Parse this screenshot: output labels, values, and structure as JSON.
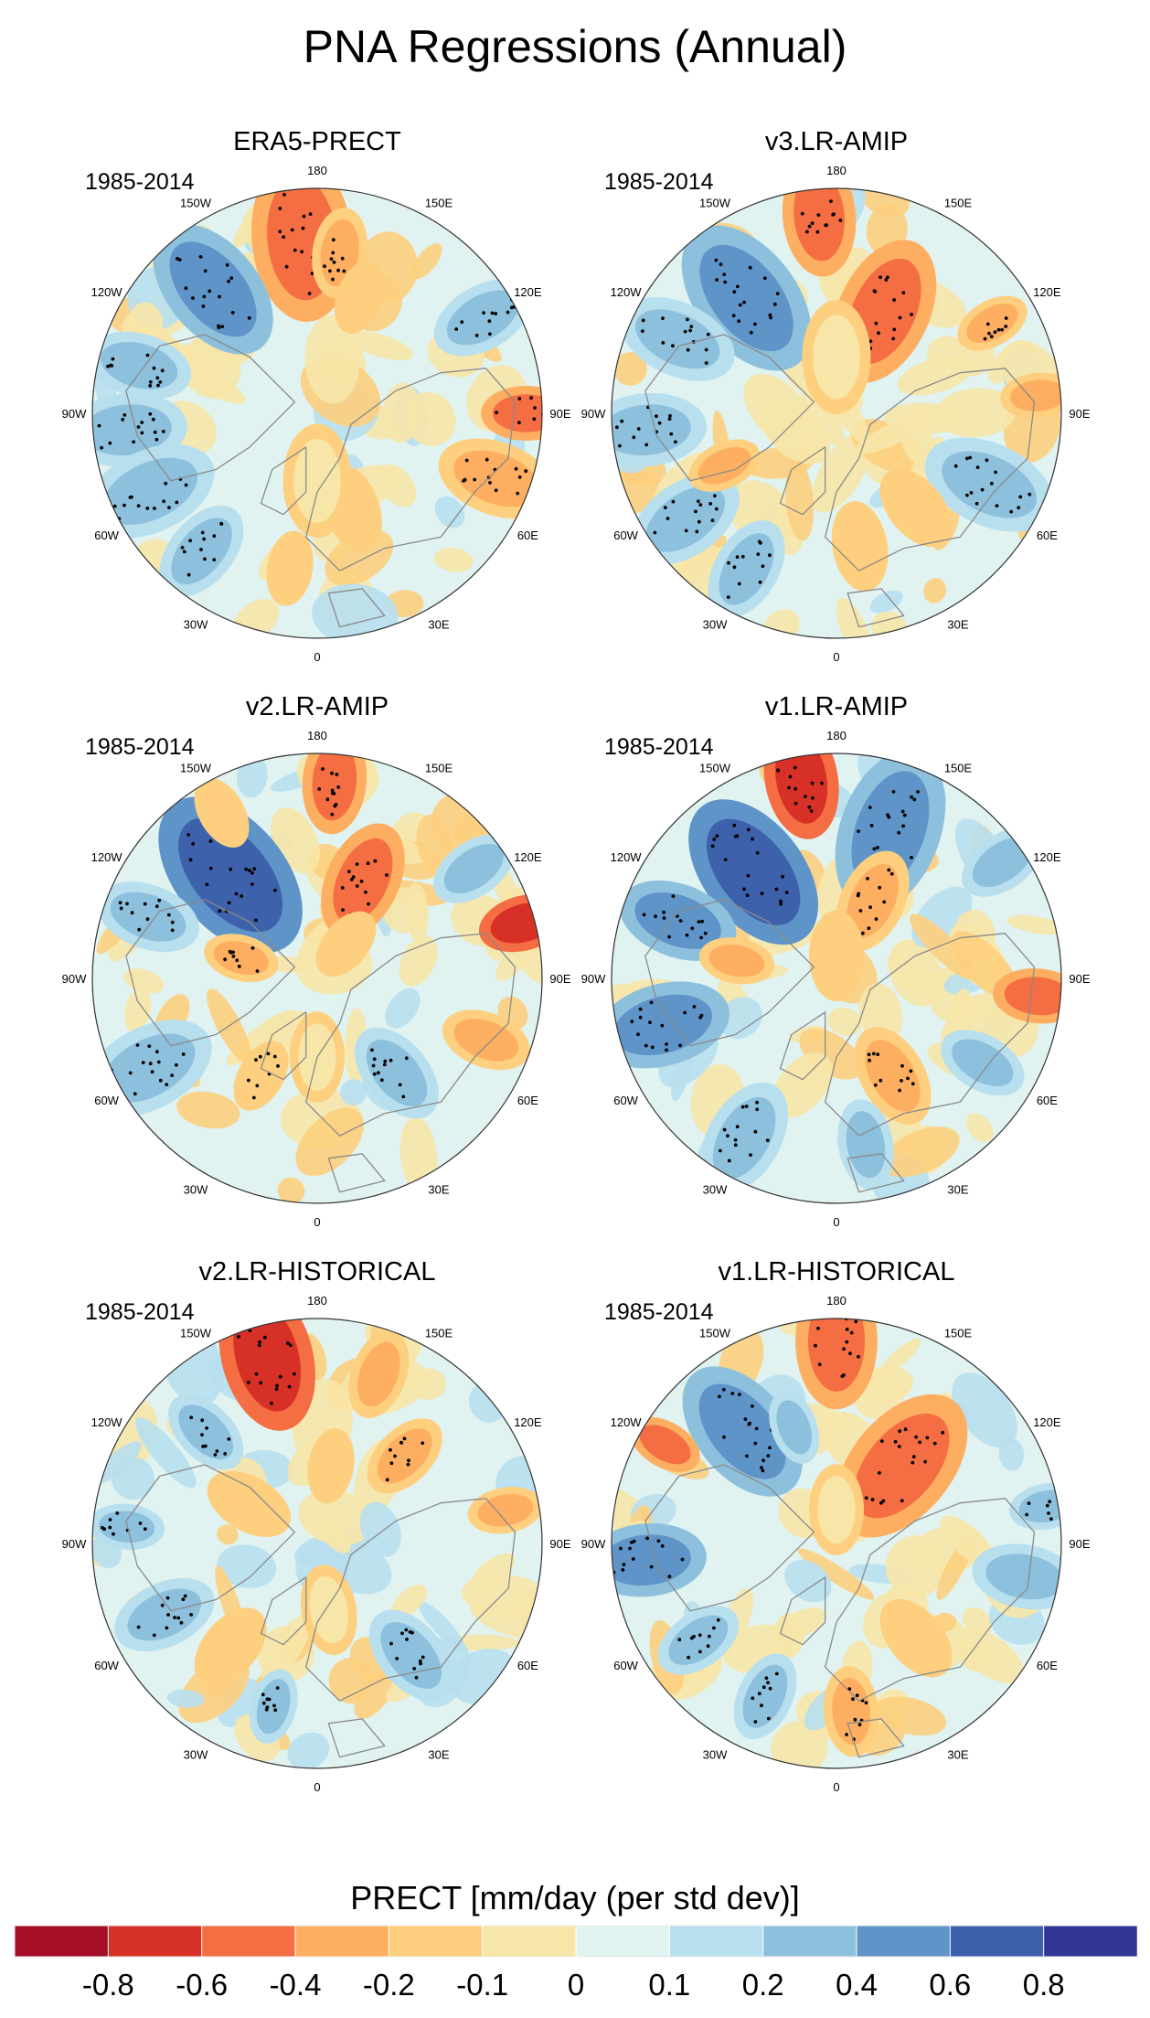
{
  "figure": {
    "title": "PNA Regressions (Annual)",
    "period": "1985-2014",
    "lon_labels": [
      "180",
      "150E",
      "120E",
      "90E",
      "60E",
      "30E",
      "0",
      "30W",
      "60W",
      "90W",
      "120W",
      "150W"
    ]
  },
  "panels": [
    {
      "title": "ERA5-PRECT"
    },
    {
      "title": "v3.LR-AMIP"
    },
    {
      "title": "v2.LR-AMIP"
    },
    {
      "title": "v1.LR-AMIP"
    },
    {
      "title": "v2.LR-HISTORICAL"
    },
    {
      "title": "v1.LR-HISTORICAL"
    }
  ],
  "colorbar": {
    "title": "PRECT [mm/day (per std dev)]",
    "levels": [
      "-0.8",
      "-0.6",
      "-0.4",
      "-0.2",
      "-0.1",
      "0",
      "0.1",
      "0.2",
      "0.4",
      "0.6",
      "0.8"
    ],
    "colors": [
      "#a50f26",
      "#d73027",
      "#f46d43",
      "#fdae61",
      "#fdcf7e",
      "#f7e6a8",
      "#e0f3f1",
      "#b8dfee",
      "#8dc0dd",
      "#5f94c8",
      "#3e61ab",
      "#313695"
    ]
  },
  "map_colors": {
    "land_outline": "#8a8a8a",
    "stipple": "#000000"
  }
}
